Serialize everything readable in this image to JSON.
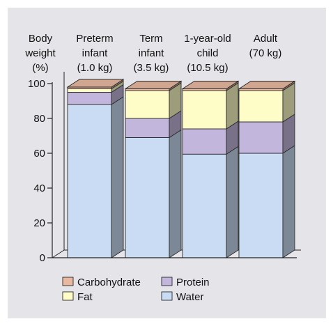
{
  "chart_data": {
    "type": "bar",
    "stacked": true,
    "three_d": true,
    "ylabel": [
      "Body",
      "weight",
      "(%)"
    ],
    "ylim": [
      0,
      100
    ],
    "yticks": [
      0,
      20,
      40,
      60,
      80,
      100
    ],
    "categories": [
      [
        "Preterm",
        "infant",
        "(1.0 kg)"
      ],
      [
        "Term",
        "infant",
        "(3.5 kg)"
      ],
      [
        "1-year-old",
        "child",
        "(10.5 kg)"
      ],
      [
        "Adult",
        "(70 kg)"
      ]
    ],
    "series": [
      {
        "name": "Water",
        "color": "#c9dcf3",
        "values": [
          88,
          69,
          59.5,
          60
        ]
      },
      {
        "name": "Protein",
        "color": "#c2b6dc",
        "values": [
          7,
          11,
          14.5,
          18
        ]
      },
      {
        "name": "Fat",
        "color": "#fefcc7",
        "values": [
          2,
          16,
          22,
          18
        ]
      },
      {
        "name": "Carbohydrate",
        "color": "#e8b8a0",
        "values": [
          1,
          1,
          1,
          1
        ]
      }
    ],
    "legend": {
      "placement": "bottom",
      "order": [
        "Carbohydrate",
        "Protein",
        "Fat",
        "Water"
      ]
    },
    "grid": false
  }
}
